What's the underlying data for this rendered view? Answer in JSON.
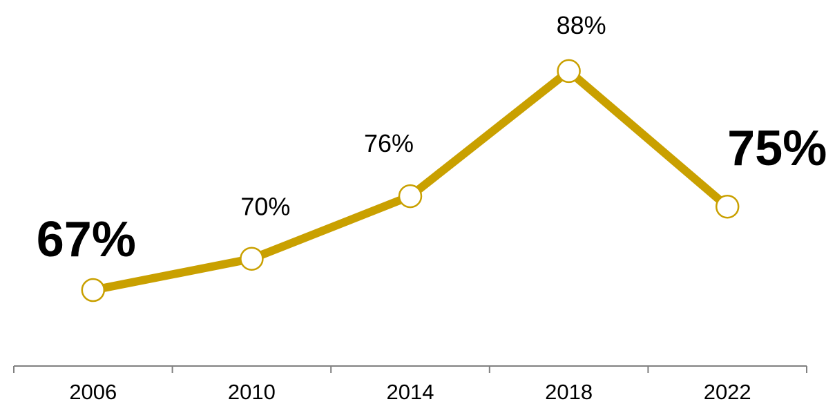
{
  "chart_data": {
    "type": "line",
    "categories": [
      "2006",
      "2010",
      "2014",
      "2018",
      "2022"
    ],
    "values": [
      67,
      70,
      76,
      88,
      75
    ],
    "data_labels": [
      "67%",
      "70%",
      "76%",
      "88%",
      "75%"
    ],
    "emphasized_labels": [
      "67%",
      "75%"
    ],
    "line_color": "#c9a000",
    "marker_fill": "#ffffff",
    "marker_stroke": "#c9a000",
    "axis_color": "#808080",
    "grid": false,
    "legend": "none"
  }
}
